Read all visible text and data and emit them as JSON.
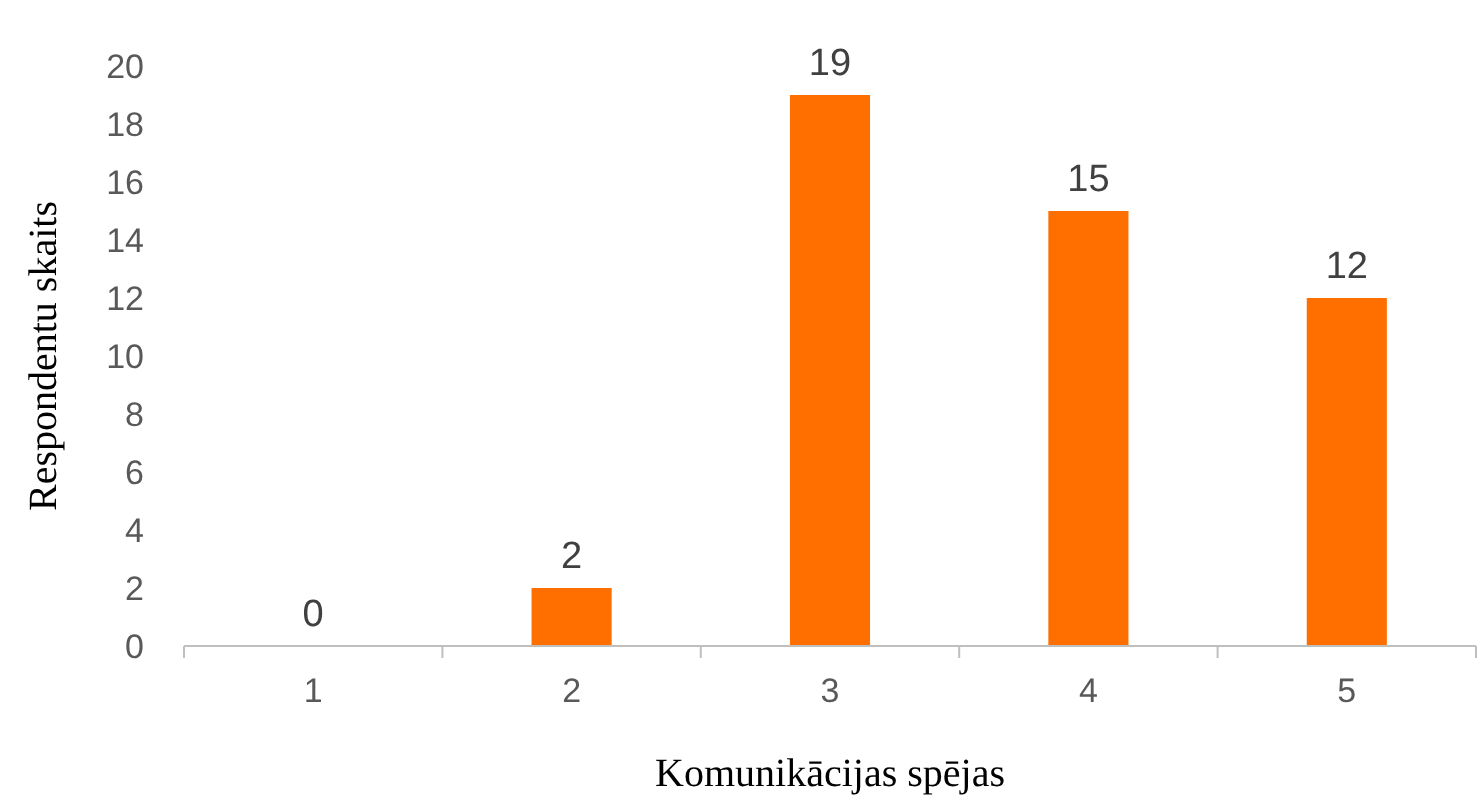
{
  "chart_data": {
    "type": "bar",
    "xlabel": "Komunikācijas spējas",
    "ylabel": "Respondentu skaits",
    "categories": [
      "1",
      "2",
      "3",
      "4",
      "5"
    ],
    "values": [
      0,
      2,
      19,
      15,
      12
    ],
    "color": "#ff6f00",
    "ylim": [
      0,
      20
    ],
    "yticks": [
      0,
      2,
      4,
      6,
      8,
      10,
      12,
      14,
      16,
      18,
      20
    ],
    "grid": false,
    "data_labels": true
  }
}
